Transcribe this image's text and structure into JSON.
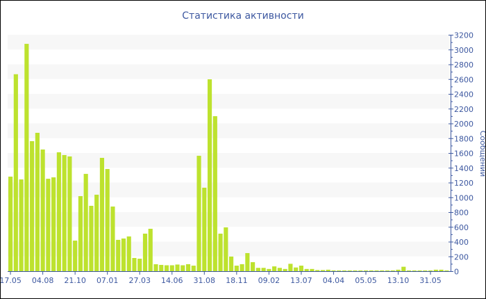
{
  "chart_data": {
    "type": "bar",
    "title": "Статистика активности",
    "ylabel": "Сообщений",
    "xlabel": "",
    "ylim": [
      0,
      3200
    ],
    "ytick_step": 200,
    "y_axis_side": "right",
    "grid": "alternating horizontal bands",
    "bar_color": "#bde22e",
    "axis_color": "#3d58a0",
    "band_color": "#f7f7f7",
    "x_tick_labels": [
      "17.05",
      "04.08",
      "21.10",
      "07.01",
      "27.03",
      "14.06",
      "31.08",
      "18.11",
      "09.02",
      "13.07",
      "04.04",
      "05.05",
      "13.10",
      "31.05"
    ],
    "x_tick_every": 6,
    "values": [
      1280,
      2666,
      1242,
      3077,
      1760,
      1873,
      1647,
      1251,
      1270,
      1609,
      1572,
      1553,
      414,
      1016,
      1317,
      885,
      1035,
      1534,
      1383,
      875,
      424,
      442,
      470,
      179,
      169,
      508,
      574,
      94,
      85,
      80,
      80,
      90,
      80,
      95,
      75,
      1562,
      1130,
      2597,
      2098,
      508,
      593,
      198,
      75,
      95,
      245,
      122,
      45,
      45,
      30,
      65,
      45,
      30,
      100,
      50,
      75,
      30,
      30,
      15,
      15,
      20,
      10,
      10,
      10,
      10,
      10,
      10,
      10,
      10,
      10,
      10,
      10,
      10,
      20,
      60,
      10,
      10,
      10,
      10,
      10,
      20,
      20,
      10
    ]
  }
}
